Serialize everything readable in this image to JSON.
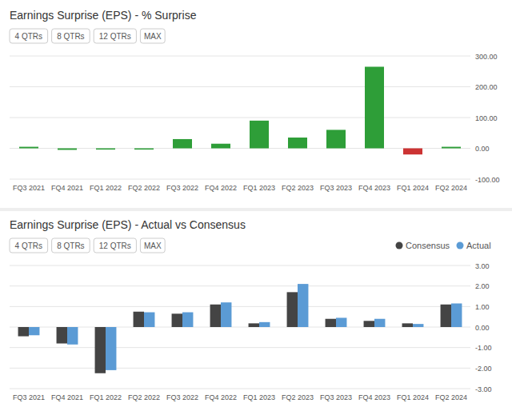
{
  "chart_data": [
    {
      "type": "bar",
      "title": "Earnings Surprise (EPS) - % Surprise",
      "annotations": [
        "4 QTRs",
        "8 QTRs",
        "12 QTRs",
        "MAX"
      ],
      "categories": [
        "FQ3 2021",
        "FQ4 2021",
        "FQ1 2022",
        "FQ2 2022",
        "FQ3 2022",
        "FQ4 2022",
        "FQ1 2023",
        "FQ2 2023",
        "FQ3 2023",
        "FQ4 2023",
        "FQ1 2024",
        "FQ2 2024"
      ],
      "values": [
        5.0,
        -5.0,
        -4.0,
        -4.0,
        30.0,
        15.0,
        90.0,
        35.0,
        60.0,
        265.0,
        -20.0,
        5.0
      ],
      "colors": [
        "#2e9e38",
        "#2e9e38",
        "#2e9e38",
        "#2e9e38",
        "#2e9e38",
        "#2e9e38",
        "#2e9e38",
        "#2e9e38",
        "#2e9e38",
        "#2e9e38",
        "#cc3333",
        "#2e9e38"
      ],
      "ylim": [
        -100,
        300
      ],
      "yticks": [
        {
          "value": -100,
          "label": "-100.00"
        },
        {
          "value": 0,
          "label": "0.00"
        },
        {
          "value": 100,
          "label": "100.00"
        },
        {
          "value": 200,
          "label": "200.00"
        },
        {
          "value": 300,
          "label": "300.00"
        }
      ],
      "grid": true
    },
    {
      "type": "bar",
      "title": "Earnings Surprise (EPS) - Actual vs Consensus",
      "annotations": [
        "4 QTRs",
        "8 QTRs",
        "12 QTRs",
        "MAX"
      ],
      "categories": [
        "FQ3 2021",
        "FQ4 2021",
        "FQ1 2022",
        "FQ2 2022",
        "FQ3 2022",
        "FQ4 2022",
        "FQ1 2023",
        "FQ2 2023",
        "FQ3 2023",
        "FQ4 2023",
        "FQ1 2024",
        "FQ2 2024"
      ],
      "series": [
        {
          "name": "Consensus",
          "color": "#444444",
          "values": [
            -0.45,
            -0.8,
            -2.25,
            0.75,
            0.65,
            1.1,
            0.18,
            1.7,
            0.4,
            0.3,
            0.18,
            1.1
          ]
        },
        {
          "name": "Actual",
          "color": "#5b9bd5",
          "values": [
            -0.4,
            -0.85,
            -2.1,
            0.72,
            0.72,
            1.2,
            0.24,
            2.1,
            0.45,
            0.4,
            0.15,
            1.15
          ]
        }
      ],
      "ylim": [
        -3.0,
        3.0
      ],
      "yticks": [
        {
          "value": -3.0,
          "label": "-3.00"
        },
        {
          "value": -2.0,
          "label": "-2.00"
        },
        {
          "value": -1.0,
          "label": "-1.00"
        },
        {
          "value": 0.0,
          "label": "0.00"
        },
        {
          "value": 1.0,
          "label": "1.00"
        },
        {
          "value": 2.0,
          "label": "2.00"
        },
        {
          "value": 3.0,
          "label": "3.00"
        }
      ],
      "grid": true,
      "legend": "upper right"
    }
  ]
}
